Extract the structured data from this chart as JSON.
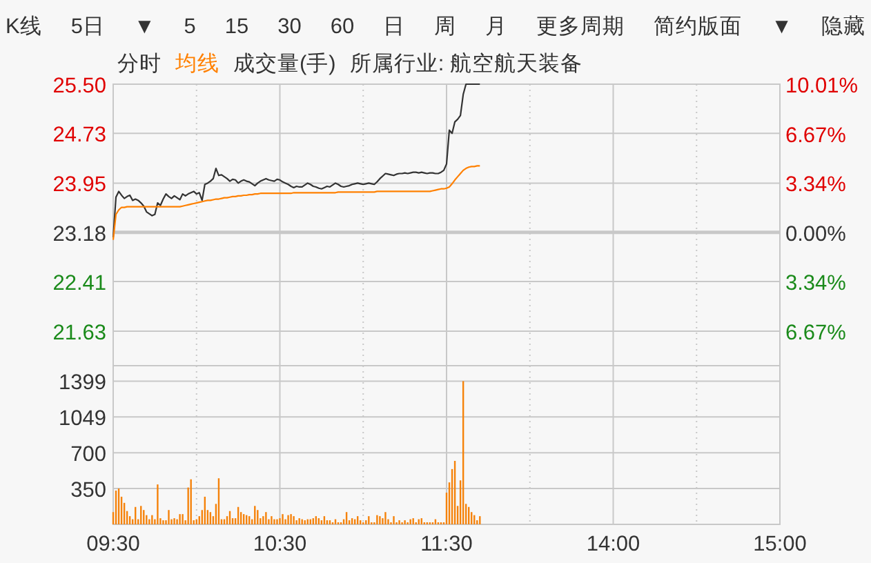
{
  "chart_data": [
    {
      "type": "line",
      "legend": "top left",
      "tick_labels": "y",
      "grid": true,
      "annotations": [
        "K线",
        "5日",
        "▼",
        "5",
        "15",
        "30",
        "60",
        "日",
        "周",
        "月",
        "更多周期",
        "简约版面",
        "▼",
        "隐藏"
      ],
      "categories": [
        null,
        null,
        null,
        null,
        null,
        null,
        null,
        null,
        null,
        null,
        null,
        null,
        null,
        null,
        null,
        null,
        null,
        null,
        null,
        null,
        null,
        null,
        null,
        null,
        null,
        null,
        null,
        null,
        null,
        null,
        null,
        null,
        null,
        null,
        null,
        null,
        null,
        null,
        null,
        null,
        null,
        null,
        null,
        null,
        null,
        null,
        null,
        null,
        null,
        null,
        null,
        null,
        null,
        null,
        null,
        null,
        null,
        null,
        null,
        null,
        null,
        null,
        null,
        null,
        null,
        null,
        null,
        null,
        null,
        null,
        null,
        null,
        null,
        null,
        null,
        null,
        null,
        null,
        null,
        null,
        null,
        null,
        null,
        null,
        null,
        null,
        null,
        null,
        null,
        null,
        null,
        null,
        null,
        null,
        null,
        null,
        null,
        null,
        null,
        null,
        null,
        null,
        null,
        null,
        null,
        null,
        null,
        null,
        null,
        null,
        null,
        null,
        null,
        null,
        null,
        null,
        null,
        null,
        null,
        null,
        null,
        null,
        null,
        null,
        null,
        null,
        null,
        null,
        null,
        null,
        null,
        null,
        null,
        null,
        null,
        null,
        null,
        null,
        null,
        null,
        null,
        null,
        null,
        null,
        null,
        null,
        null,
        null,
        null,
        null,
        null,
        null,
        null,
        null,
        null,
        null,
        null,
        null,
        null,
        null,
        null,
        null,
        null,
        null,
        null,
        null,
        null,
        null,
        null,
        null,
        null,
        null,
        null,
        null,
        null,
        null,
        null,
        null,
        null,
        null,
        null,
        null,
        null,
        null,
        null,
        null,
        null,
        null,
        null,
        null,
        null,
        null,
        null,
        null,
        null,
        null,
        null,
        null,
        null,
        null,
        null,
        null,
        null,
        null,
        null,
        null,
        null,
        null,
        null,
        null,
        null,
        null,
        null,
        null,
        null,
        null,
        null,
        null,
        null,
        null,
        null,
        null,
        null,
        null,
        null,
        null,
        null,
        null,
        null,
        null,
        null,
        null,
        null,
        null,
        null,
        null,
        null,
        null,
        null,
        null,
        null
      ],
      "ylim": [
        21.09,
        25.5
      ],
      "yticks": [
        21.63,
        22.41,
        23.18,
        23.95,
        24.73,
        {
          "value": 25.5,
          "label": "25.50"
        }
      ],
      "y2lim": [
        -9.02,
        10.01
      ],
      "y2ticks": [
        {
          "value": -6.67,
          "label": "6.67%"
        },
        {
          "value": -3.34,
          "label": "3.34%"
        },
        {
          "value": 0,
          "label": "0.00%"
        },
        {
          "value": 3.34,
          "label": "3.34%"
        },
        {
          "value": 6.67,
          "label": "6.67%"
        },
        {
          "value": 10.01,
          "label": "10.01%"
        }
      ],
      "ref_lines": [
        {
          "axis": "y",
          "value": 23.18,
          "color": "#c8c8c8"
        }
      ],
      "series": [
        {
          "name": "分时",
          "color": "#333333",
          "values": [
            23.1,
            23.73,
            23.82,
            23.76,
            23.71,
            23.74,
            23.76,
            23.68,
            23.7,
            23.68,
            23.64,
            23.59,
            23.5,
            23.47,
            23.44,
            23.46,
            23.64,
            23.6,
            23.7,
            23.78,
            23.74,
            23.71,
            23.75,
            23.72,
            23.69,
            23.78,
            23.75,
            23.78,
            23.8,
            23.82,
            23.78,
            23.8,
            23.68,
            23.93,
            23.95,
            23.98,
            24.02,
            24.18,
            24.07,
            24.08,
            24.05,
            24.02,
            23.98,
            24.01,
            24.0,
            23.95,
            23.98,
            24.0,
            23.98,
            23.97,
            23.94,
            23.91,
            23.95,
            23.98,
            24.0,
            24.02,
            24.0,
            23.99,
            23.98,
            24.01,
            24.0,
            23.97,
            23.95,
            23.93,
            23.9,
            23.88,
            23.9,
            23.89,
            23.89,
            23.92,
            23.95,
            23.93,
            23.9,
            23.89,
            23.87,
            23.86,
            23.88,
            23.9,
            23.89,
            23.92,
            23.95,
            23.93,
            23.9,
            23.89,
            23.9,
            23.91,
            23.93,
            23.94,
            23.95,
            23.94,
            23.93,
            23.94,
            23.95,
            23.94,
            23.93,
            23.97,
            24.02,
            24.06,
            24.1,
            24.09,
            24.08,
            24.07,
            24.09,
            24.1,
            24.1,
            24.11,
            24.1,
            24.11,
            24.12,
            24.12,
            24.11,
            24.12,
            24.11,
            24.1,
            24.11,
            24.11,
            24.1,
            24.1,
            24.12,
            24.15,
            24.25,
            24.78,
            24.73,
            24.91,
            24.95,
            25.01,
            25.34,
            25.5,
            25.5,
            25.5,
            25.5,
            25.5,
            25.5,
            null,
            null,
            null,
            null,
            null,
            null,
            null,
            null,
            null,
            null,
            null,
            null,
            null,
            null,
            null,
            null,
            null,
            null,
            null,
            null,
            null,
            null,
            null,
            null,
            null,
            null,
            null,
            null,
            null,
            null,
            null,
            null,
            null,
            null,
            null,
            null,
            null,
            null,
            null,
            null,
            null,
            null,
            null,
            null,
            null,
            null,
            null,
            null,
            null,
            null,
            null,
            null,
            null,
            null,
            null,
            null,
            null,
            null,
            null,
            null,
            null,
            null,
            null,
            null,
            null,
            null,
            null,
            null,
            null,
            null,
            null,
            null,
            null,
            null,
            null,
            null,
            null,
            null,
            null,
            null,
            null,
            null,
            null,
            null,
            null,
            null,
            null,
            null,
            null,
            null,
            null,
            null,
            null,
            null,
            null,
            null,
            null,
            null,
            null,
            null,
            null,
            null,
            null,
            null,
            null,
            null,
            null,
            null
          ]
        },
        {
          "name": "均线",
          "color": "#ff8000",
          "values": [
            23.06,
            23.46,
            23.53,
            23.57,
            23.57,
            23.58,
            23.58,
            23.58,
            23.58,
            23.58,
            23.58,
            23.58,
            23.58,
            23.58,
            23.58,
            23.58,
            23.58,
            23.58,
            23.58,
            23.58,
            23.58,
            23.58,
            23.58,
            23.58,
            23.58,
            23.59,
            23.6,
            23.61,
            23.62,
            23.63,
            23.64,
            23.65,
            23.66,
            23.67,
            23.68,
            23.68,
            23.69,
            23.7,
            23.7,
            23.71,
            23.72,
            23.72,
            23.73,
            23.74,
            23.74,
            23.75,
            23.75,
            23.76,
            23.76,
            23.77,
            23.77,
            23.78,
            23.78,
            23.79,
            23.79,
            23.79,
            23.79,
            23.79,
            23.79,
            23.79,
            23.79,
            23.79,
            23.79,
            23.79,
            23.79,
            23.8,
            23.8,
            23.8,
            23.8,
            23.8,
            23.8,
            23.8,
            23.8,
            23.8,
            23.8,
            23.8,
            23.8,
            23.8,
            23.8,
            23.8,
            23.8,
            23.81,
            23.81,
            23.81,
            23.81,
            23.81,
            23.81,
            23.81,
            23.81,
            23.81,
            23.81,
            23.81,
            23.81,
            23.81,
            23.81,
            23.82,
            23.82,
            23.82,
            23.82,
            23.82,
            23.82,
            23.82,
            23.82,
            23.82,
            23.82,
            23.82,
            23.82,
            23.82,
            23.82,
            23.82,
            23.82,
            23.82,
            23.82,
            23.82,
            23.82,
            23.83,
            23.84,
            23.85,
            23.86,
            23.86,
            23.87,
            23.89,
            23.94,
            24.0,
            24.05,
            24.1,
            24.15,
            24.18,
            24.2,
            24.21,
            24.21,
            24.22,
            24.22,
            null,
            null,
            null,
            null,
            null,
            null,
            null,
            null,
            null,
            null,
            null,
            null,
            null,
            null,
            null,
            null,
            null,
            null,
            null,
            null,
            null,
            null,
            null,
            null,
            null,
            null,
            null,
            null,
            null,
            null,
            null,
            null,
            null,
            null,
            null,
            null,
            null,
            null,
            null,
            null,
            null,
            null,
            null,
            null,
            null,
            null,
            null,
            null,
            null,
            null,
            null,
            null,
            null,
            null,
            null,
            null,
            null,
            null,
            null,
            null,
            null,
            null,
            null,
            null,
            null,
            null,
            null,
            null,
            null,
            null,
            null,
            null,
            null,
            null,
            null,
            null,
            null,
            null,
            null,
            null,
            null,
            null,
            null,
            null,
            null,
            null,
            null,
            null,
            null,
            null,
            null,
            null,
            null,
            null,
            null,
            null,
            null,
            null,
            null,
            null,
            null,
            null,
            null,
            null,
            null,
            null,
            null,
            null
          ]
        }
      ]
    },
    {
      "type": "bar",
      "grid": true,
      "annotations": [
        "成交量(手)",
        "所属行业: 航空航天装备"
      ],
      "categories": [
        "09:30",
        null,
        null,
        null,
        null,
        null,
        null,
        null,
        null,
        null,
        null,
        null,
        null,
        null,
        null,
        null,
        null,
        null,
        null,
        null,
        null,
        null,
        null,
        null,
        null,
        null,
        null,
        null,
        null,
        null,
        null,
        null,
        null,
        null,
        null,
        null,
        null,
        null,
        null,
        null,
        null,
        null,
        null,
        null,
        null,
        null,
        null,
        null,
        null,
        null,
        null,
        null,
        null,
        null,
        null,
        null,
        null,
        null,
        null,
        null,
        "10:30",
        null,
        null,
        null,
        null,
        null,
        null,
        null,
        null,
        null,
        null,
        null,
        null,
        null,
        null,
        null,
        null,
        null,
        null,
        null,
        null,
        null,
        null,
        null,
        null,
        null,
        null,
        null,
        null,
        null,
        null,
        null,
        null,
        null,
        null,
        null,
        null,
        null,
        null,
        null,
        null,
        null,
        null,
        null,
        null,
        null,
        null,
        null,
        null,
        null,
        null,
        null,
        null,
        null,
        null,
        null,
        null,
        null,
        null,
        null,
        "11:30",
        null,
        null,
        null,
        null,
        null,
        null,
        null,
        null,
        null,
        null,
        null,
        null,
        null,
        null,
        null,
        null,
        null,
        null,
        null,
        null,
        null,
        null,
        null,
        null,
        null,
        null,
        null,
        null,
        null,
        null,
        null,
        null,
        null,
        null,
        null,
        null,
        null,
        null,
        null,
        null,
        null,
        null,
        null,
        null,
        null,
        null,
        null,
        null,
        null,
        null,
        null,
        null,
        null,
        null,
        null,
        null,
        null,
        null,
        null,
        "14:00",
        null,
        null,
        null,
        null,
        null,
        null,
        null,
        null,
        null,
        null,
        null,
        null,
        null,
        null,
        null,
        null,
        null,
        null,
        null,
        null,
        null,
        null,
        null,
        null,
        null,
        null,
        null,
        null,
        null,
        null,
        null,
        null,
        null,
        null,
        null,
        null,
        null,
        null,
        null,
        null,
        null,
        null,
        null,
        null,
        null,
        null,
        null,
        null,
        null,
        null,
        null,
        null,
        null,
        null,
        null,
        null,
        null,
        null,
        null,
        "15:00"
      ],
      "ylim": [
        0,
        1550
      ],
      "yticks": [
        350,
        700,
        1049,
        1399
      ],
      "series": [
        {
          "color": "#f5820a",
          "values": [
            120,
            330,
            350,
            270,
            210,
            130,
            80,
            50,
            170,
            50,
            180,
            140,
            90,
            50,
            90,
            50,
            390,
            60,
            40,
            40,
            140,
            50,
            60,
            50,
            100,
            100,
            40,
            360,
            440,
            40,
            50,
            80,
            140,
            270,
            140,
            120,
            80,
            200,
            450,
            50,
            50,
            80,
            130,
            60,
            60,
            170,
            120,
            100,
            90,
            80,
            50,
            180,
            140,
            60,
            80,
            120,
            50,
            80,
            50,
            50,
            60,
            100,
            50,
            90,
            100,
            80,
            40,
            60,
            50,
            40,
            50,
            50,
            60,
            80,
            60,
            40,
            80,
            40,
            40,
            20,
            50,
            20,
            20,
            50,
            120,
            40,
            60,
            50,
            80,
            40,
            20,
            40,
            80,
            20,
            20,
            90,
            80,
            60,
            120,
            50,
            20,
            80,
            20,
            40,
            20,
            40,
            20,
            50,
            60,
            20,
            50,
            60,
            20,
            20,
            20,
            20,
            50,
            20,
            20,
            20,
            310,
            410,
            540,
            620,
            180,
            430,
            1399,
            200,
            170,
            120,
            90,
            40,
            80,
            null,
            null,
            null,
            null,
            null,
            null,
            null,
            null,
            null,
            null,
            null,
            null,
            null,
            null,
            null,
            null,
            null,
            null,
            null,
            null,
            null,
            null,
            null,
            null,
            null,
            null,
            null,
            null,
            null,
            null,
            null,
            null,
            null,
            null,
            null,
            null,
            null,
            null,
            null,
            null,
            null,
            null,
            null,
            null,
            null,
            null,
            null,
            null,
            null,
            null,
            null,
            null,
            null,
            null,
            null,
            null,
            null,
            null,
            null,
            null,
            null,
            null,
            null,
            null,
            null,
            null,
            null,
            null,
            null,
            null,
            null,
            null,
            null,
            null,
            null,
            null,
            null,
            null,
            null,
            null,
            null,
            null,
            null,
            null,
            null,
            null,
            null,
            null,
            null,
            null,
            null,
            null,
            null,
            null,
            null,
            null,
            null,
            null,
            null,
            null,
            null,
            null,
            null,
            null,
            null,
            null,
            null,
            null
          ]
        }
      ]
    }
  ]
}
